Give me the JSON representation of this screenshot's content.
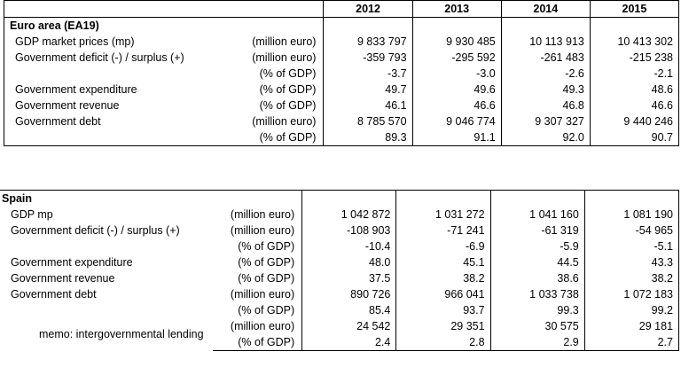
{
  "years": [
    "2012",
    "2013",
    "2014",
    "2015"
  ],
  "euro": {
    "title": "Euro area (EA19)",
    "rows": [
      {
        "label": "GDP market prices (mp)",
        "unit": "(million euro)",
        "values": [
          "9 833 797",
          "9 930 485",
          "10 113 913",
          "10 413 302"
        ]
      },
      {
        "label": "Government deficit (-) / surplus (+)",
        "unit": "(million euro)",
        "values": [
          "-359 793",
          "-295 592",
          "-261 483",
          "-215 238"
        ]
      },
      {
        "label": "",
        "unit": "(% of GDP)",
        "values": [
          "-3.7",
          "-3.0",
          "-2.6",
          "-2.1"
        ]
      },
      {
        "label": "Government expenditure",
        "unit": "(% of GDP)",
        "values": [
          "49.7",
          "49.6",
          "49.3",
          "48.6"
        ]
      },
      {
        "label": "Government revenue",
        "unit": "(% of GDP)",
        "values": [
          "46.1",
          "46.6",
          "46.8",
          "46.6"
        ]
      },
      {
        "label": "Government debt",
        "unit": "(million euro)",
        "values": [
          "8 785 570",
          "9 046 774",
          "9 307 327",
          "9 440 246"
        ]
      },
      {
        "label": "",
        "unit": "(% of GDP)",
        "values": [
          "89.3",
          "91.1",
          "92.0",
          "90.7"
        ]
      }
    ]
  },
  "spain": {
    "title": "Spain",
    "rows": [
      {
        "label": "GDP mp",
        "unit": "(million euro)",
        "values": [
          "1 042 872",
          "1 031 272",
          "1 041 160",
          "1 081 190"
        ]
      },
      {
        "label": "Government deficit (-) / surplus (+)",
        "unit": "(million euro)",
        "values": [
          "-108 903",
          "-71 241",
          "-61 319",
          "-54 965"
        ]
      },
      {
        "label": "",
        "unit": "(% of GDP)",
        "values": [
          "-10.4",
          "-6.9",
          "-5.9",
          "-5.1"
        ]
      },
      {
        "label": "Government expenditure",
        "unit": "(% of GDP)",
        "values": [
          "48.0",
          "45.1",
          "44.5",
          "43.3"
        ]
      },
      {
        "label": "Government revenue",
        "unit": "(% of GDP)",
        "values": [
          "37.5",
          "38.2",
          "38.6",
          "38.2"
        ]
      },
      {
        "label": "Government debt",
        "unit": "(million euro)",
        "values": [
          "890 726",
          "966 041",
          "1 033 738",
          "1 072 183"
        ]
      },
      {
        "label": "",
        "unit": "(% of GDP)",
        "values": [
          "85.4",
          "93.7",
          "99.3",
          "99.2"
        ]
      }
    ],
    "memo": {
      "label": "memo: intergovernmental lending",
      "rows": [
        {
          "unit": "(million euro)",
          "values": [
            "24 542",
            "29 351",
            "30 575",
            "29 181"
          ]
        },
        {
          "unit": "(% of GDP)",
          "values": [
            "2.4",
            "2.8",
            "2.9",
            "2.7"
          ]
        }
      ]
    }
  }
}
